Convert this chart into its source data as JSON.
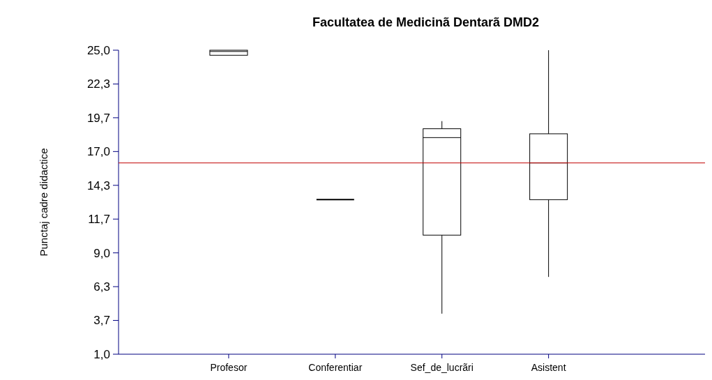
{
  "chart_data": {
    "type": "box",
    "title": "Facultatea de Medicinã  Dentarã DMD2",
    "ylabel": "Punctaj cadre didactice",
    "categories": [
      "Profesor",
      "Conferentiar",
      "Sef_de_lucrãri",
      "Asistent"
    ],
    "boxes": [
      {
        "low": 24.6,
        "q1": 24.6,
        "median": 24.9,
        "q3": 25.0,
        "high": 25.0
      },
      {
        "low": 13.2,
        "q1": 13.2,
        "median": 13.2,
        "q3": 13.2,
        "high": 13.2
      },
      {
        "low": 4.2,
        "q1": 10.4,
        "median": 18.1,
        "q3": 18.8,
        "high": 19.4
      },
      {
        "low": 7.1,
        "q1": 13.2,
        "median": 16.1,
        "q3": 18.4,
        "high": 25.0
      }
    ],
    "color": "#000000",
    "ylim": [
      1.0,
      25.0
    ],
    "yticks": [
      {
        "value": 1,
        "label": "1,0"
      },
      {
        "value": 3.667,
        "label": "3,7"
      },
      {
        "value": 6.333,
        "label": "6,3"
      },
      {
        "value": 9,
        "label": "9,0"
      },
      {
        "value": 11.667,
        "label": "11,7"
      },
      {
        "value": 14.333,
        "label": "14,3"
      },
      {
        "value": 17,
        "label": "17,0"
      },
      {
        "value": 19.667,
        "label": "19,7"
      },
      {
        "value": 22.333,
        "label": "22,3"
      },
      {
        "value": 25,
        "label": "25,0"
      }
    ],
    "ref_lines": [
      {
        "axis": "y",
        "value": 16.1,
        "color": "#c00000"
      }
    ],
    "grid": false
  }
}
